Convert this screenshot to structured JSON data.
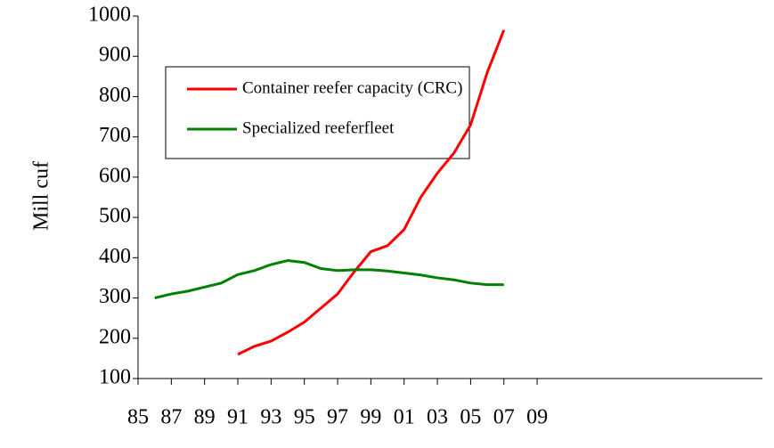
{
  "chart_data": {
    "type": "line",
    "y_label": "Mill cuf",
    "categories": [
      "85",
      null,
      "87",
      null,
      "89",
      null,
      "91",
      null,
      "93",
      null,
      "95",
      null,
      "97",
      null,
      "99",
      null,
      "01",
      null,
      "03",
      null,
      "05",
      null,
      "07",
      null,
      "09"
    ],
    "series": [
      {
        "name": "Container reefer capacity (CRC)",
        "color": "#ff0000",
        "values": [
          null,
          null,
          null,
          null,
          null,
          null,
          160,
          180,
          193,
          215,
          240,
          275,
          310,
          365,
          415,
          430,
          470,
          550,
          610,
          660,
          730,
          860,
          965,
          null,
          null
        ]
      },
      {
        "name": "Specialized reeferfleet",
        "color": "#008000",
        "values": [
          null,
          300,
          310,
          317,
          327,
          337,
          358,
          368,
          383,
          393,
          388,
          373,
          368,
          370,
          370,
          367,
          362,
          357,
          350,
          345,
          337,
          333,
          333,
          null,
          null
        ]
      }
    ],
    "ylim": [
      100,
      1000
    ],
    "yticks": [
      100,
      200,
      300,
      400,
      500,
      600,
      700,
      800,
      900,
      1000
    ],
    "grid": false,
    "legend": "upper left"
  }
}
